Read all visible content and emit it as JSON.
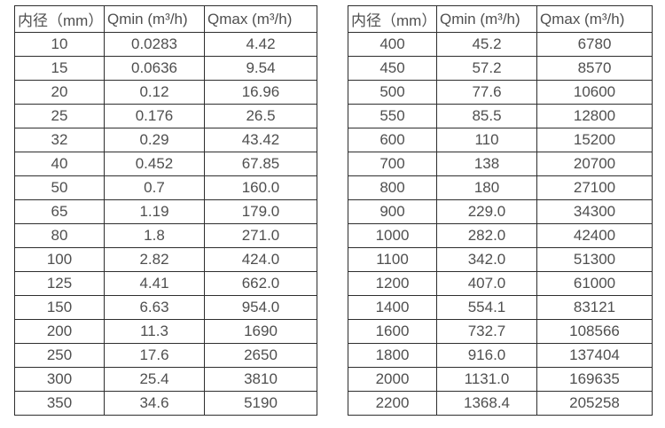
{
  "page": {
    "background_color": "#ffffff",
    "border_color": "#2e2e2e",
    "text_color": "#4f4f4f"
  },
  "tables": [
    {
      "name": "flow-spec-small-diameters",
      "headers": [
        "内径（mm）",
        "Qmin (m³/h)",
        "Qmax (m³/h)"
      ],
      "rows": [
        [
          "10",
          "0.0283",
          "4.42"
        ],
        [
          "15",
          "0.0636",
          "9.54"
        ],
        [
          "20",
          "0.12",
          "16.96"
        ],
        [
          "25",
          "0.176",
          "26.5"
        ],
        [
          "32",
          "0.29",
          "43.42"
        ],
        [
          "40",
          "0.452",
          "67.85"
        ],
        [
          "50",
          "0.7",
          "160.0"
        ],
        [
          "65",
          "1.19",
          "179.0"
        ],
        [
          "80",
          "1.8",
          "271.0"
        ],
        [
          "100",
          "2.82",
          "424.0"
        ],
        [
          "125",
          "4.41",
          "662.0"
        ],
        [
          "150",
          "6.63",
          "954.0"
        ],
        [
          "200",
          "11.3",
          "1690"
        ],
        [
          "250",
          "17.6",
          "2650"
        ],
        [
          "300",
          "25.4",
          "3810"
        ],
        [
          "350",
          "34.6",
          "5190"
        ]
      ]
    },
    {
      "name": "flow-spec-large-diameters",
      "headers": [
        "内径（mm）",
        "Qmin (m³/h)",
        "Qmax (m³/h)"
      ],
      "rows": [
        [
          "400",
          "45.2",
          "6780"
        ],
        [
          "450",
          "57.2",
          "8570"
        ],
        [
          "500",
          "77.6",
          "10600"
        ],
        [
          "550",
          "85.5",
          "12800"
        ],
        [
          "600",
          "110",
          "15200"
        ],
        [
          "700",
          "138",
          "20700"
        ],
        [
          "800",
          "180",
          "27100"
        ],
        [
          "900",
          "229.0",
          "34300"
        ],
        [
          "1000",
          "282.0",
          "42400"
        ],
        [
          "1100",
          "342.0",
          "51300"
        ],
        [
          "1200",
          "407.0",
          "61000"
        ],
        [
          "1400",
          "554.1",
          "83121"
        ],
        [
          "1600",
          "732.7",
          "108566"
        ],
        [
          "1800",
          "916.0",
          "137404"
        ],
        [
          "2000",
          "1131.0",
          "169635"
        ],
        [
          "2200",
          "1368.4",
          "205258"
        ]
      ]
    }
  ]
}
